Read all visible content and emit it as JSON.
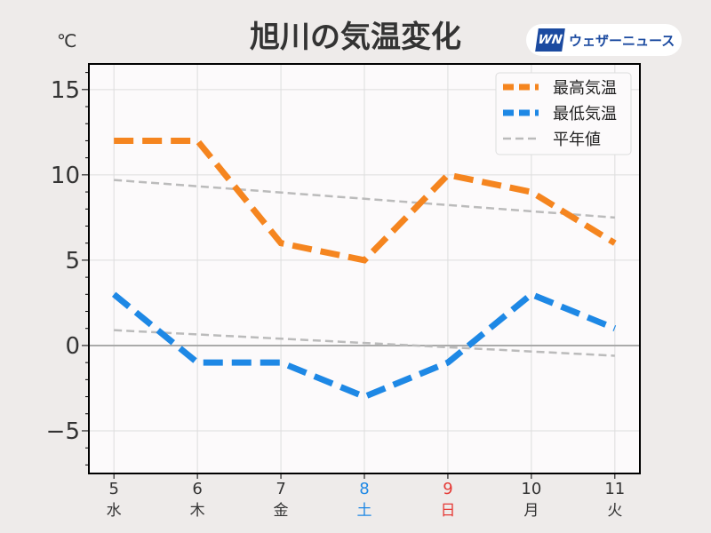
{
  "title": "旭川の気温変化",
  "unit": "℃",
  "logo": {
    "mark": "WN",
    "text": "ウェザーニュース"
  },
  "chart_data": {
    "type": "line",
    "title": "旭川の気温変化",
    "ylabel": "℃",
    "x": [
      5,
      6,
      7,
      8,
      9,
      10,
      11
    ],
    "x_tick_labels": [
      "5",
      "6",
      "7",
      "8",
      "9",
      "10",
      "11"
    ],
    "weekday_labels": [
      "水",
      "木",
      "金",
      "土",
      "日",
      "月",
      "火"
    ],
    "weekday_colors": [
      "#333333",
      "#333333",
      "#333333",
      "#1e88e5",
      "#e53935",
      "#333333",
      "#333333"
    ],
    "xlim": [
      4.7,
      11.3
    ],
    "ylim": [
      -7.5,
      16.5
    ],
    "yticks": [
      -5,
      0,
      5,
      10,
      15
    ],
    "ytick_labels": [
      "−5",
      "0",
      "5",
      "10",
      "15"
    ],
    "grid": true,
    "legend_position": "top-right",
    "series": [
      {
        "name": "最高気温",
        "color": "#f5851f",
        "values": [
          12,
          12,
          6,
          5,
          10,
          9,
          6
        ],
        "style": "thick-dashed"
      },
      {
        "name": "最低気温",
        "color": "#1e88e5",
        "values": [
          3,
          -1,
          -1,
          -3,
          -1,
          3,
          1
        ],
        "style": "thick-dashed"
      },
      {
        "name": "平年値",
        "color": "#bbbbbb",
        "style": "thin-dashed",
        "segments": [
          {
            "x": [
              5,
              11
            ],
            "y": [
              9.7,
              7.5
            ]
          },
          {
            "x": [
              5,
              11
            ],
            "y": [
              0.9,
              -0.6
            ]
          }
        ]
      }
    ]
  }
}
